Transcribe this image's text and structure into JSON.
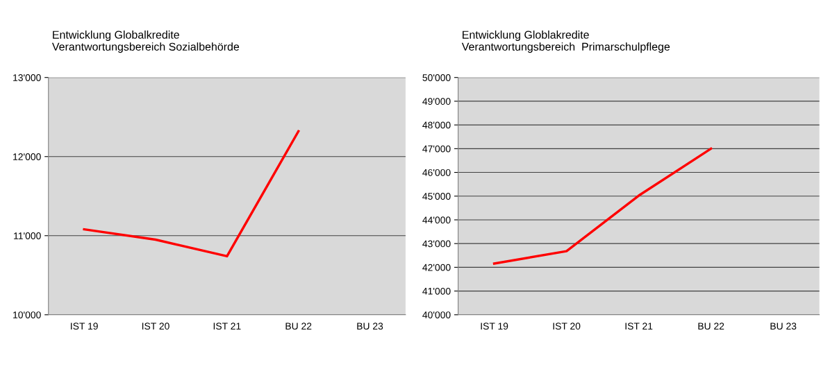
{
  "chart_data": [
    {
      "type": "line",
      "title": "Entwicklung Globalkredite\nVerantwortungsbereich Sozialbehörde",
      "categories": [
        "IST 19",
        "IST 20",
        "IST 21",
        "BU 22",
        "BU 23"
      ],
      "ylim": [
        10000,
        13000
      ],
      "yticks": [
        {
          "value": 10000,
          "label": "10'000"
        },
        {
          "value": 11000,
          "label": "11'000"
        },
        {
          "value": 12000,
          "label": "12'000"
        },
        {
          "value": 13000,
          "label": "13'000"
        }
      ],
      "grid": "y",
      "marker": "none",
      "series": [
        {
          "color": "#ff0000",
          "values": [
            11080,
            10950,
            10740,
            12320,
            null
          ]
        }
      ]
    },
    {
      "type": "line",
      "title": "Entwicklung Globlakredite\nVerantwortungsbereich  Primarschulpflege",
      "categories": [
        "IST 19",
        "IST 20",
        "IST 21",
        "BU 22",
        "BU 23"
      ],
      "ylim": [
        40000,
        50000
      ],
      "yticks": [
        {
          "value": 40000,
          "label": "40'000"
        },
        {
          "value": 41000,
          "label": "41'000"
        },
        {
          "value": 42000,
          "label": "42'000"
        },
        {
          "value": 43000,
          "label": "43'000"
        },
        {
          "value": 44000,
          "label": "44'000"
        },
        {
          "value": 45000,
          "label": "45'000"
        },
        {
          "value": 46000,
          "label": "46'000"
        },
        {
          "value": 47000,
          "label": "47'000"
        },
        {
          "value": 48000,
          "label": "48'000"
        },
        {
          "value": 49000,
          "label": "49'000"
        },
        {
          "value": 50000,
          "label": "50'000"
        }
      ],
      "grid": "y",
      "marker": "none",
      "series": [
        {
          "color": "#ff0000",
          "values": [
            42160,
            42680,
            45020,
            47000,
            null
          ]
        }
      ]
    }
  ]
}
